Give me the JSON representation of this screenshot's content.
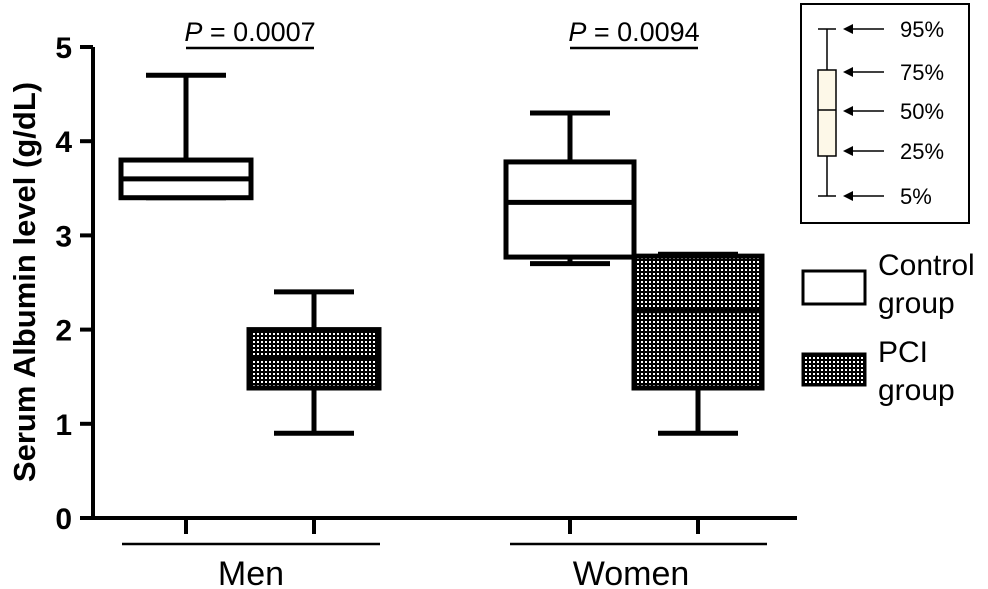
{
  "chart_data": {
    "type": "box",
    "ylabel": "Serum Albumin level (g/dL)",
    "ylim": [
      0,
      5
    ],
    "yticks": [
      "0",
      "1",
      "2",
      "3",
      "4",
      "5"
    ],
    "categories": [
      "Men",
      "Women"
    ],
    "series": [
      {
        "name": "Control group",
        "fill": "#ffffff",
        "boxes": [
          {
            "category": "Men",
            "p5": 3.4,
            "p25": 3.4,
            "p50": 3.6,
            "p75": 3.8,
            "p95": 4.7
          },
          {
            "category": "Women",
            "p5": 2.7,
            "p25": 2.77,
            "p50": 3.35,
            "p75": 3.78,
            "p95": 4.3
          }
        ]
      },
      {
        "name": "PCI group",
        "fill": "dotted-grid",
        "boxes": [
          {
            "category": "Men",
            "p5": 0.9,
            "p25": 1.38,
            "p50": 1.7,
            "p75": 2.0,
            "p95": 2.4
          },
          {
            "category": "Women",
            "p5": 0.9,
            "p25": 1.38,
            "p50": 2.2,
            "p75": 2.78,
            "p95": 2.8
          }
        ]
      }
    ],
    "annotations": [
      {
        "category": "Men",
        "text_prefix": "P",
        "text_rest": " = 0.0007"
      },
      {
        "category": "Women",
        "text_prefix": "P",
        "text_rest": " = 0.0094"
      }
    ],
    "legend": {
      "placement": "right",
      "entries": [
        {
          "line1": "Control",
          "line2": "group"
        },
        {
          "line1": "PCI",
          "line2": "group"
        }
      ]
    },
    "percentile_key": {
      "placement": "top-right",
      "labels": [
        "95%",
        "75%",
        "50%",
        "25%",
        "5%"
      ],
      "box_fill": "#fdf8e8"
    }
  }
}
